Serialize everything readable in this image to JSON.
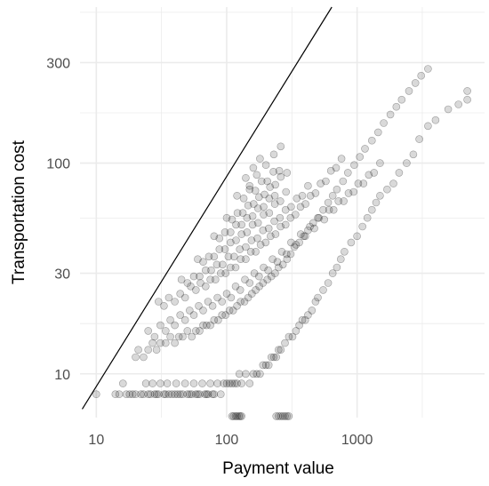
{
  "chart_data": {
    "type": "scatter",
    "title": "",
    "xlabel": "Payment value",
    "ylabel": "Transportation cost",
    "x_scale": "log10",
    "y_scale": "log10",
    "xlim": [
      7.5,
      9500
    ],
    "ylim": [
      6.2,
      550
    ],
    "x_ticks": [
      10,
      100,
      1000
    ],
    "x_tick_labels": [
      "10",
      "100",
      "1000"
    ],
    "y_ticks": [
      10,
      30,
      100,
      300
    ],
    "y_tick_labels": [
      "10",
      "30",
      "100",
      "300"
    ],
    "grid": true,
    "legend": "none",
    "point_color": "#000000",
    "point_opacity": 0.15,
    "grid_color": "#ebebeb",
    "reference_line": {
      "label": "",
      "points": [
        [
          7.8,
          6.8
        ],
        [
          640,
          550
        ]
      ]
    },
    "series": [
      {
        "x": [
          10,
          14,
          15,
          16,
          17,
          18,
          19,
          20,
          22,
          23,
          24,
          25,
          26,
          27,
          28,
          29,
          30,
          31,
          33,
          34,
          35,
          36,
          38,
          40,
          41,
          42,
          44,
          46,
          48,
          50,
          52,
          54,
          56,
          58,
          60,
          62,
          65,
          68,
          70,
          72,
          75,
          78,
          80,
          85,
          90,
          95,
          100,
          105,
          110,
          115,
          120,
          125,
          130,
          140,
          150,
          160,
          170,
          180,
          190,
          200,
          210,
          220,
          230,
          240,
          250,
          260,
          280,
          300,
          320,
          340,
          360,
          380,
          400,
          420,
          450,
          480,
          500,
          550,
          600,
          650,
          700,
          750,
          800,
          900,
          1000,
          1100,
          1200,
          1300,
          1400,
          1500,
          1700,
          1900,
          2100,
          2400,
          2700,
          3000,
          3500,
          4000,
          5000,
          6000,
          7000,
          7000,
          20,
          21,
          23,
          25,
          27,
          29,
          31,
          34,
          37,
          40,
          43,
          46,
          50,
          54,
          58,
          62,
          66,
          70,
          75,
          80,
          86,
          92,
          98,
          105,
          112,
          120,
          128,
          137,
          146,
          156,
          167,
          178,
          190,
          205,
          220,
          235,
          250,
          270,
          290,
          310,
          330,
          360,
          390,
          420,
          460,
          500,
          550,
          600,
          650,
          700,
          780,
          850,
          950,
          1050,
          1150,
          1300,
          1450,
          1600,
          1800,
          2000,
          2200,
          2500,
          2800,
          3100,
          3500,
          25,
          28,
          31,
          34,
          37,
          40,
          44,
          48,
          52,
          56,
          61,
          66,
          72,
          78,
          85,
          92,
          100,
          108,
          117,
          127,
          138,
          150,
          163,
          177,
          192,
          208,
          225,
          245,
          265,
          288,
          312,
          340,
          370,
          400,
          435,
          470,
          510,
          560,
          610,
          660,
          720,
          790,
          860,
          940,
          1020,
          1120,
          1230,
          1350,
          1500,
          30,
          33,
          36,
          40,
          44,
          48,
          53,
          58,
          63,
          69,
          75,
          82,
          90,
          98,
          107,
          117,
          128,
          140,
          153,
          167,
          182,
          199,
          217,
          237,
          259,
          283,
          309,
          337,
          368,
          402,
          439,
          480,
          525,
          575,
          630,
          690,
          760,
          45,
          50,
          56,
          62,
          69,
          76,
          84,
          93,
          103,
          114,
          126,
          140,
          155,
          172,
          190,
          210,
          232,
          256,
          283,
          312,
          345,
          380,
          420,
          60,
          66,
          73,
          80,
          88,
          97,
          107,
          118,
          130,
          143,
          158,
          174,
          192,
          212,
          234,
          258,
          285,
          80,
          88,
          97,
          107,
          118,
          130,
          143,
          158,
          174,
          192,
          212,
          234,
          100,
          110,
          121,
          133,
          146,
          161,
          177,
          195,
          215,
          236,
          260,
          290,
          120,
          135,
          150,
          166,
          185,
          205,
          228,
          253,
          140,
          150,
          160,
          170,
          180,
          200,
          230,
          260,
          110,
          113,
          117,
          120,
          124,
          127,
          130,
          240,
          250,
          260,
          270,
          280,
          290,
          300
        ],
        "y": [
          8,
          8,
          8,
          9,
          8,
          8,
          8,
          8,
          8,
          8,
          9,
          8,
          8,
          9,
          8,
          8,
          8,
          9,
          8,
          8,
          9,
          8,
          8,
          8,
          9,
          8,
          8,
          8,
          9,
          8,
          8,
          8,
          9,
          8,
          8,
          8,
          9,
          8,
          8,
          8,
          9,
          8,
          8,
          9,
          8,
          9,
          9,
          9,
          9,
          9,
          9,
          10,
          9,
          10,
          9,
          10,
          10,
          10,
          11,
          11,
          11,
          12,
          12,
          12,
          13,
          13,
          14,
          15,
          15,
          16,
          17,
          18,
          18,
          19,
          20,
          22,
          23,
          25,
          27,
          30,
          32,
          35,
          38,
          42,
          45,
          50,
          55,
          60,
          65,
          70,
          75,
          80,
          90,
          100,
          110,
          130,
          150,
          160,
          180,
          190,
          200,
          220,
          12,
          13,
          12,
          13,
          14,
          13,
          14,
          14,
          15,
          14,
          15,
          15,
          16,
          15,
          16,
          16,
          17,
          17,
          17,
          18,
          18,
          19,
          19,
          20,
          20,
          21,
          22,
          22,
          23,
          24,
          25,
          26,
          27,
          28,
          29,
          30,
          32,
          33,
          35,
          37,
          40,
          42,
          45,
          48,
          52,
          55,
          60,
          65,
          70,
          75,
          82,
          90,
          98,
          107,
          117,
          128,
          140,
          155,
          170,
          185,
          200,
          220,
          240,
          260,
          280,
          16,
          15,
          17,
          16,
          18,
          17,
          19,
          18,
          20,
          19,
          21,
          20,
          22,
          21,
          23,
          22,
          24,
          23,
          26,
          25,
          28,
          27,
          30,
          29,
          32,
          31,
          35,
          34,
          38,
          37,
          42,
          41,
          46,
          45,
          50,
          49,
          55,
          54,
          60,
          60,
          66,
          66,
          72,
          73,
          80,
          80,
          88,
          90,
          100,
          22,
          21,
          23,
          22,
          24,
          23,
          26,
          25,
          27,
          26,
          28,
          28,
          30,
          30,
          32,
          32,
          35,
          35,
          38,
          38,
          41,
          42,
          45,
          46,
          50,
          51,
          55,
          57,
          62,
          64,
          70,
          72,
          80,
          82,
          92,
          95,
          105,
          28,
          27,
          29,
          29,
          31,
          31,
          33,
          33,
          36,
          36,
          39,
          40,
          43,
          44,
          48,
          49,
          53,
          55,
          60,
          62,
          68,
          70,
          78,
          35,
          34,
          36,
          36,
          39,
          39,
          42,
          43,
          46,
          47,
          51,
          52,
          57,
          58,
          64,
          66,
          73,
          45,
          44,
          47,
          47,
          51,
          51,
          55,
          56,
          61,
          62,
          68,
          70,
          55,
          54,
          58,
          58,
          63,
          64,
          69,
          71,
          77,
          79,
          86,
          90,
          70,
          68,
          75,
          74,
          82,
          82,
          91,
          92,
          85,
          78,
          95,
          88,
          105,
          98,
          110,
          120,
          6.3,
          6.3,
          6.3,
          6.3,
          6.3,
          6.3,
          6.3,
          6.3,
          6.3,
          6.3,
          6.3,
          6.3,
          6.3,
          6.3
        ]
      }
    ]
  }
}
